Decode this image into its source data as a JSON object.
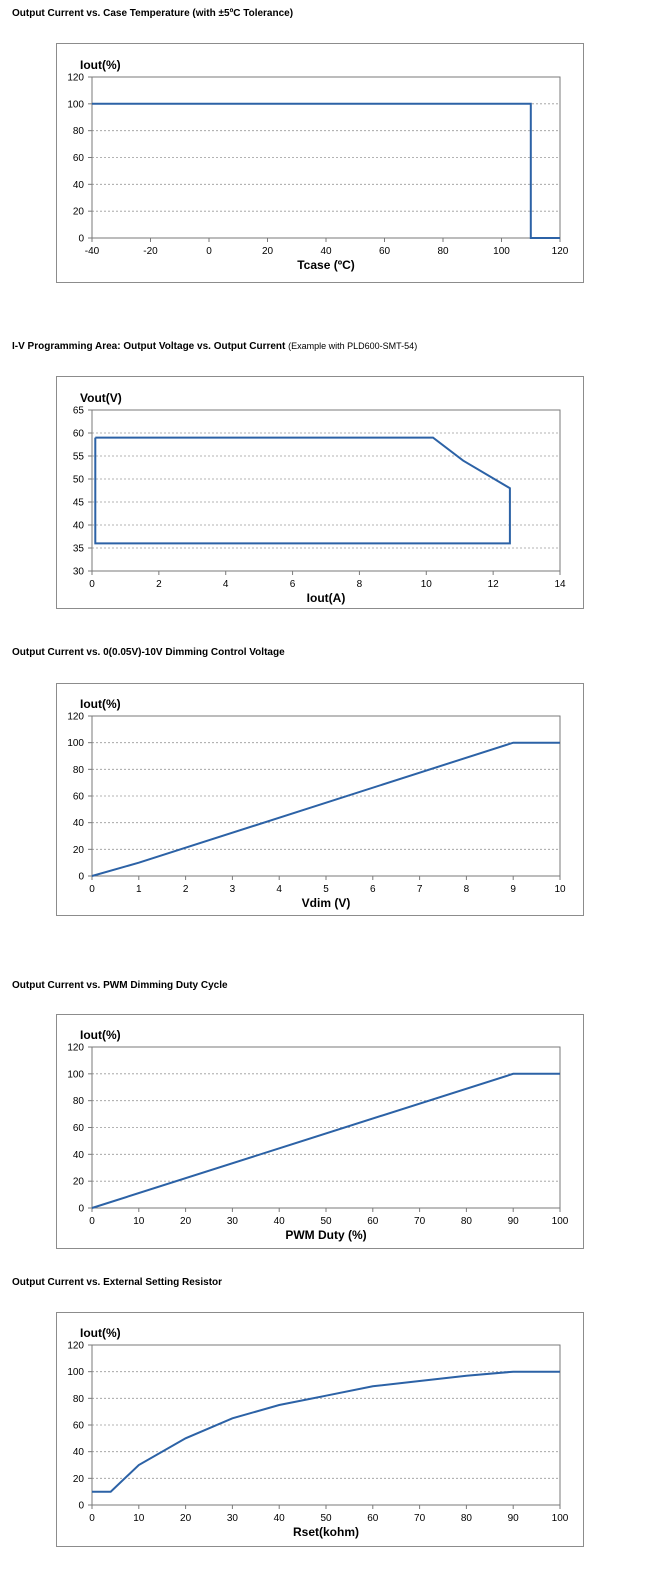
{
  "titles": {
    "chart1": "Output Current vs. Case Temperature (with ±5ºC Tolerance)",
    "chart2_main": "I-V Programming Area: Output Voltage vs. Output Current",
    "chart2_note": "(Example with PLD600-SMT-54)",
    "chart3": "Output Current vs. 0(0.05V)-10V Dimming Control Voltage",
    "chart4": "Output Current vs. PWM Dimming Duty Cycle",
    "chart5": "Output Current vs. External Setting Resistor"
  },
  "chart_data": [
    {
      "type": "line",
      "title": "Output Current vs. Case Temperature (with ±5ºC Tolerance)",
      "xlabel": "Tcase (ºC)",
      "ylabel": "Iout(%)",
      "xlim": [
        -40,
        120
      ],
      "ylim": [
        0,
        120
      ],
      "xticks": [
        -40,
        -20,
        0,
        20,
        40,
        60,
        80,
        100,
        120
      ],
      "yticks": [
        0,
        20,
        40,
        60,
        80,
        100,
        120
      ],
      "grid": true,
      "line_color": "#2c62a6",
      "x": [
        -40,
        110,
        110,
        120
      ],
      "y": [
        100,
        100,
        0,
        0
      ]
    },
    {
      "type": "line",
      "title": "I-V Programming Area: Output Voltage vs. Output Current",
      "xlabel": "Iout(A)",
      "ylabel": "Vout(V)",
      "xlim": [
        0,
        14
      ],
      "ylim": [
        30,
        65
      ],
      "xticks": [
        0,
        2,
        4,
        6,
        8,
        10,
        12,
        14
      ],
      "yticks": [
        30,
        35,
        40,
        45,
        50,
        55,
        60,
        65
      ],
      "grid": true,
      "line_color": "#2c62a6",
      "closed": true,
      "x": [
        0.1,
        10.2,
        11.1,
        12.5,
        12.5,
        0.1,
        0.1
      ],
      "y": [
        59,
        59,
        54,
        48,
        36,
        36,
        59
      ]
    },
    {
      "type": "line",
      "title": "Output Current vs. 0(0.05V)-10V Dimming Control Voltage",
      "xlabel": "Vdim (V)",
      "ylabel": "Iout(%)",
      "xlim": [
        0,
        10
      ],
      "ylim": [
        0,
        120
      ],
      "xticks": [
        0,
        1,
        2,
        3,
        4,
        5,
        6,
        7,
        8,
        9,
        10
      ],
      "yticks": [
        0,
        20,
        40,
        60,
        80,
        100,
        120
      ],
      "grid": true,
      "line_color": "#2c62a6",
      "x": [
        0,
        1,
        9,
        10
      ],
      "y": [
        0,
        10,
        100,
        100
      ]
    },
    {
      "type": "line",
      "title": "Output Current vs. PWM Dimming Duty Cycle",
      "xlabel": "PWM Duty (%)",
      "ylabel": "Iout(%)",
      "xlim": [
        0,
        100
      ],
      "ylim": [
        0,
        120
      ],
      "xticks": [
        0,
        10,
        20,
        30,
        40,
        50,
        60,
        70,
        80,
        90,
        100
      ],
      "yticks": [
        0,
        20,
        40,
        60,
        80,
        100,
        120
      ],
      "grid": true,
      "line_color": "#2c62a6",
      "x": [
        0,
        90,
        100
      ],
      "y": [
        0,
        100,
        100
      ]
    },
    {
      "type": "line",
      "title": "Output Current vs. External Setting Resistor",
      "xlabel": "Rset(kohm)",
      "ylabel": "Iout(%)",
      "xlim": [
        0,
        100
      ],
      "ylim": [
        0,
        120
      ],
      "xticks": [
        0,
        10,
        20,
        30,
        40,
        50,
        60,
        70,
        80,
        90,
        100
      ],
      "yticks": [
        0,
        20,
        40,
        60,
        80,
        100,
        120
      ],
      "grid": true,
      "line_color": "#2c62a6",
      "x": [
        0,
        4,
        10,
        20,
        30,
        40,
        50,
        60,
        70,
        80,
        90,
        100
      ],
      "y": [
        10,
        10,
        30,
        50,
        65,
        75,
        82,
        89,
        93,
        97,
        100,
        100
      ]
    }
  ]
}
